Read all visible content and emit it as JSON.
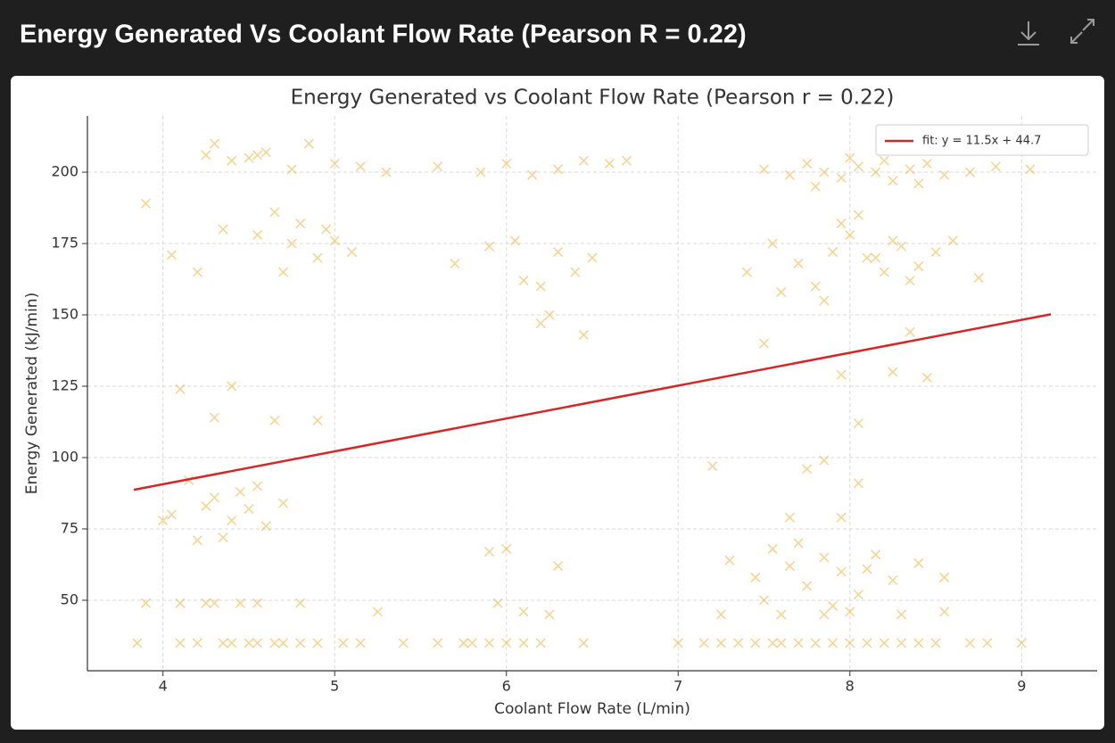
{
  "header": {
    "title": "Energy Generated Vs Coolant Flow Rate (Pearson R = 0.22)"
  },
  "chart_data": {
    "type": "scatter",
    "title": "Energy Generated vs Coolant Flow Rate (Pearson r = 0.22)",
    "x_label": "Coolant Flow Rate (L/min)",
    "y_label": "Energy Generated (kJ/min)",
    "xlim": [
      3.56,
      9.44
    ],
    "ylim": [
      25.3,
      219.7
    ],
    "xticks": [
      4,
      5,
      6,
      7,
      8,
      9
    ],
    "yticks": [
      50,
      75,
      100,
      125,
      150,
      175,
      200
    ],
    "grid": true,
    "legend": "upper right",
    "series": [
      {
        "type": "scatter",
        "color": "#f2b84b",
        "marker": "x",
        "x": [
          3.85,
          4.1,
          4.2,
          4.35,
          4.4,
          4.5,
          4.55,
          4.65,
          4.7,
          4.8,
          4.9,
          5.05,
          5.15,
          5.4,
          5.6,
          5.75,
          5.8,
          5.9,
          6.0,
          6.1,
          6.2,
          6.45,
          7.0,
          7.15,
          7.25,
          7.35,
          7.45,
          7.55,
          7.6,
          7.7,
          7.8,
          7.9,
          8.0,
          8.1,
          8.2,
          8.3,
          8.4,
          8.5,
          8.7,
          8.8,
          9.0,
          3.9,
          4.1,
          4.25,
          4.3,
          4.45,
          4.55,
          4.8,
          7.25,
          7.6,
          7.85,
          8.0,
          8.3,
          8.55,
          6.1,
          6.25,
          7.5,
          7.65,
          7.75,
          7.85,
          7.95,
          8.05,
          8.15,
          8.25,
          8.35,
          8.45,
          8.55,
          8.7,
          8.85,
          9.05,
          7.8,
          8.0,
          8.2,
          8.4,
          7.4,
          7.55,
          7.7,
          7.8,
          7.9,
          8.0,
          8.1,
          8.2,
          8.3,
          8.4,
          8.5,
          8.6,
          8.75,
          7.6,
          7.95,
          8.15,
          8.35,
          7.85,
          8.05,
          8.25,
          4.25,
          4.4,
          4.5,
          4.6,
          4.75,
          4.85,
          5.0,
          5.15,
          5.3,
          4.3,
          4.55,
          4.55,
          4.65,
          4.75,
          4.8,
          4.9,
          5.0,
          5.1,
          4.7,
          4.95,
          4.35,
          4.2,
          4.05,
          5.6,
          5.85,
          6.0,
          6.15,
          6.3,
          6.45,
          6.6,
          6.7,
          5.7,
          5.9,
          6.05,
          6.2,
          6.3,
          6.4,
          6.5,
          6.25,
          6.1,
          6.45,
          6.2,
          4.25,
          4.3,
          4.4,
          4.45,
          4.5,
          4.55,
          4.6,
          4.35,
          4.2,
          4.7,
          4.05,
          4.1,
          4.15,
          4.3,
          4.65,
          4.9,
          4.4,
          3.9,
          4.0,
          7.3,
          7.45,
          7.55,
          7.65,
          7.75,
          7.85,
          7.95,
          8.05,
          8.15,
          8.25,
          8.4,
          8.55,
          7.5,
          7.7,
          7.9,
          8.1,
          7.2,
          7.75,
          7.85,
          7.95,
          8.05,
          7.65,
          8.05,
          8.25,
          7.95,
          8.45,
          8.35,
          7.5,
          5.9,
          6.0,
          5.95,
          6.3,
          5.25
        ],
        "values": [
          35,
          35,
          35,
          35,
          35,
          35,
          35,
          35,
          35,
          35,
          35,
          35,
          35,
          35,
          35,
          35,
          35,
          35,
          35,
          35,
          35,
          35,
          35,
          35,
          35,
          35,
          35,
          35,
          35,
          35,
          35,
          35,
          35,
          35,
          35,
          35,
          35,
          35,
          35,
          35,
          35,
          49,
          49,
          49,
          49,
          49,
          49,
          49,
          45,
          45,
          45,
          46,
          45,
          46,
          46,
          45,
          201,
          199,
          203,
          200,
          198,
          202,
          200,
          197,
          201,
          203,
          199,
          200,
          202,
          201,
          195,
          205,
          204,
          196,
          165,
          175,
          168,
          160,
          172,
          178,
          170,
          165,
          174,
          167,
          172,
          176,
          163,
          158,
          182,
          170,
          162,
          155,
          185,
          176,
          206,
          204,
          205,
          207,
          201,
          210,
          203,
          202,
          200,
          210,
          206,
          178,
          186,
          175,
          182,
          170,
          176,
          172,
          165,
          180,
          180,
          165,
          171,
          202,
          200,
          203,
          199,
          201,
          204,
          203,
          204,
          168,
          174,
          176,
          160,
          172,
          165,
          170,
          150,
          162,
          143,
          147,
          83,
          86,
          78,
          88,
          82,
          90,
          76,
          72,
          71,
          84,
          80,
          124,
          92,
          114,
          113,
          113,
          125,
          189,
          78,
          64,
          58,
          68,
          62,
          55,
          65,
          60,
          52,
          66,
          57,
          63,
          58,
          50,
          70,
          48,
          61,
          97,
          96,
          99,
          79,
          91,
          79,
          112,
          130,
          129,
          128,
          144,
          140,
          67,
          68,
          49,
          62,
          46
        ]
      },
      {
        "type": "line",
        "name": "fit: y = 11.5x + 44.7",
        "color": "#d62728",
        "x": [
          3.83,
          9.17
        ],
        "values": [
          88.7,
          150.2
        ]
      }
    ]
  }
}
